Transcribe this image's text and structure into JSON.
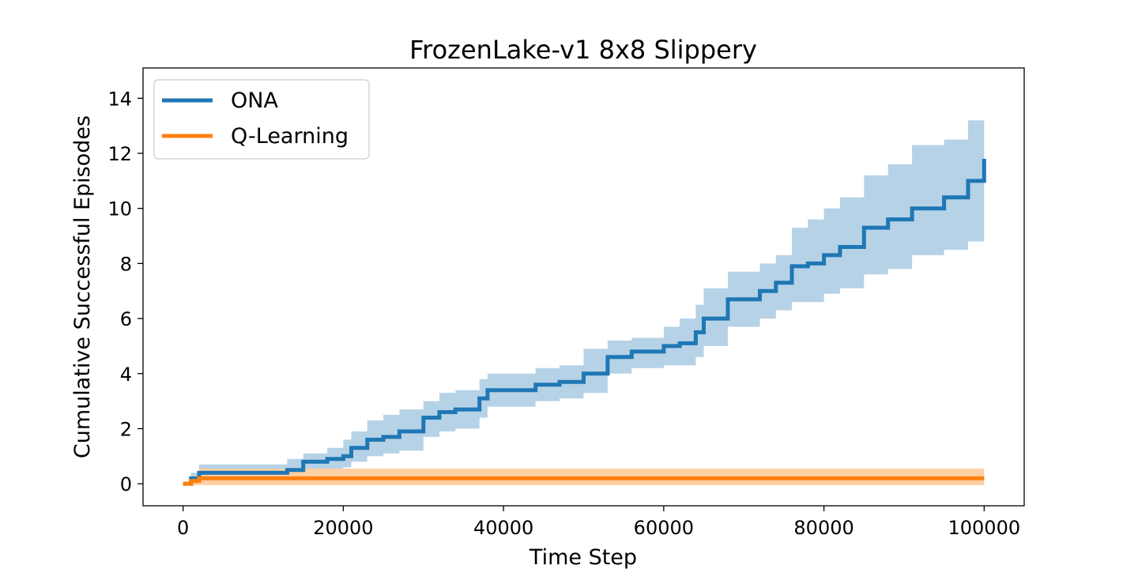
{
  "chart_data": {
    "type": "line",
    "title": "FrozenLake-v1 8x8 Slippery",
    "xlabel": "Time Step",
    "ylabel": "Cumulative Successful Episodes",
    "xlim": [
      -5000,
      105000
    ],
    "ylim": [
      -0.8,
      15.1
    ],
    "xticks": [
      0,
      20000,
      40000,
      60000,
      80000,
      100000
    ],
    "yticks": [
      0,
      2,
      4,
      6,
      8,
      10,
      12,
      14
    ],
    "legend_position": "top-left",
    "grid": false,
    "series": [
      {
        "name": "ONA",
        "color": "#1f77b4",
        "band_color": "#b6d2e7",
        "x": [
          0,
          1000,
          2000,
          12000,
          13000,
          15000,
          18000,
          20000,
          21000,
          23000,
          25000,
          27000,
          30000,
          32000,
          34000,
          37000,
          38000,
          40000,
          44000,
          47000,
          50000,
          53000,
          56000,
          60000,
          62000,
          64000,
          65000,
          68000,
          72000,
          74000,
          76000,
          78000,
          80000,
          82000,
          85000,
          88000,
          91000,
          95000,
          98000,
          100000
        ],
        "mean": [
          0,
          0.2,
          0.4,
          0.4,
          0.5,
          0.8,
          0.9,
          1.0,
          1.3,
          1.6,
          1.7,
          1.9,
          2.4,
          2.6,
          2.7,
          3.1,
          3.4,
          3.4,
          3.6,
          3.7,
          4.0,
          4.6,
          4.8,
          5.0,
          5.1,
          5.5,
          6.0,
          6.7,
          7.0,
          7.3,
          7.9,
          8.0,
          8.3,
          8.6,
          9.3,
          9.6,
          10.0,
          10.4,
          11.0,
          11.8
        ],
        "upper": [
          0,
          0.4,
          0.7,
          0.7,
          0.9,
          1.1,
          1.3,
          1.6,
          1.9,
          2.3,
          2.5,
          2.7,
          3.0,
          3.3,
          3.4,
          3.8,
          4.0,
          4.0,
          4.2,
          4.3,
          4.9,
          5.2,
          5.3,
          5.7,
          6.0,
          6.5,
          7.1,
          7.7,
          8.0,
          8.3,
          9.3,
          9.6,
          10.0,
          10.4,
          11.2,
          11.6,
          12.3,
          12.5,
          13.2,
          14.3
        ],
        "lower": [
          0,
          0.0,
          0.1,
          0.1,
          0.2,
          0.4,
          0.5,
          0.6,
          0.8,
          1.0,
          1.1,
          1.2,
          1.7,
          1.9,
          2.0,
          2.4,
          2.8,
          2.8,
          3.0,
          3.1,
          3.3,
          4.0,
          4.2,
          4.3,
          4.3,
          4.6,
          5.0,
          5.7,
          6.0,
          6.3,
          6.6,
          6.6,
          6.9,
          7.1,
          7.6,
          7.8,
          8.3,
          8.5,
          8.8,
          9.3
        ]
      },
      {
        "name": "Q-Learning",
        "color": "#ff7f0e",
        "band_color": "#ffd0a3",
        "x": [
          0,
          1000,
          2000,
          100000
        ],
        "mean": [
          0,
          0.1,
          0.2,
          0.2
        ],
        "upper": [
          0,
          0.3,
          0.55,
          0.55
        ],
        "lower": [
          0,
          -0.05,
          -0.05,
          -0.05
        ]
      }
    ]
  }
}
